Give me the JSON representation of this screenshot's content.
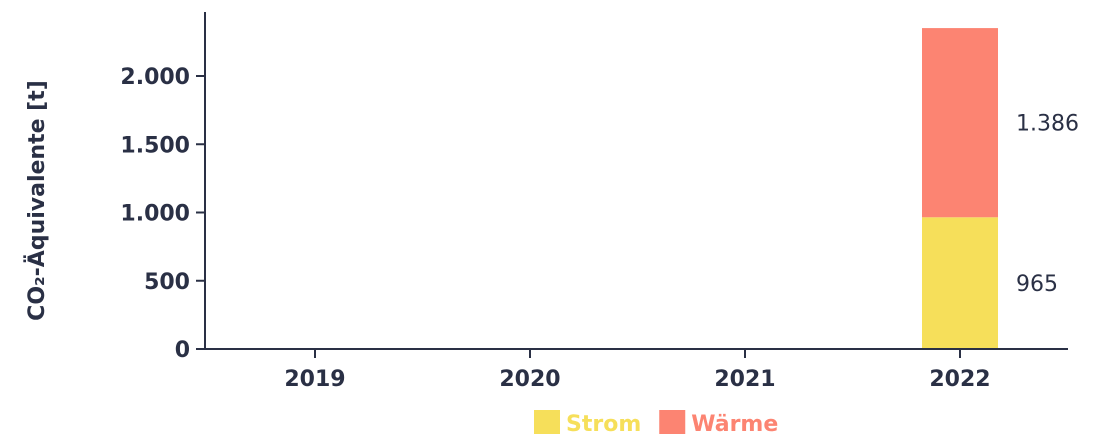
{
  "chart_data": {
    "type": "bar",
    "stacked": true,
    "ylabel": "CO₂-Äquivalente [t]",
    "categories": [
      "2019",
      "2020",
      "2021",
      "2022"
    ],
    "ylim": [
      0,
      2350
    ],
    "yticks": [
      0,
      500,
      1000,
      1500,
      2000
    ],
    "ytick_labels": [
      "0",
      "500",
      "1.000",
      "1.500",
      "2.000"
    ],
    "series": [
      {
        "name": "Strom",
        "color": "#f6df5a",
        "values": [
          0,
          0,
          0,
          965
        ],
        "labels": [
          "",
          "",
          "",
          "965"
        ]
      },
      {
        "name": "Wärme",
        "color": "#fc8472",
        "values": [
          0,
          0,
          0,
          1386
        ],
        "labels": [
          "",
          "",
          "",
          "1.386"
        ]
      }
    ],
    "legend": {
      "position": "bottom"
    }
  }
}
